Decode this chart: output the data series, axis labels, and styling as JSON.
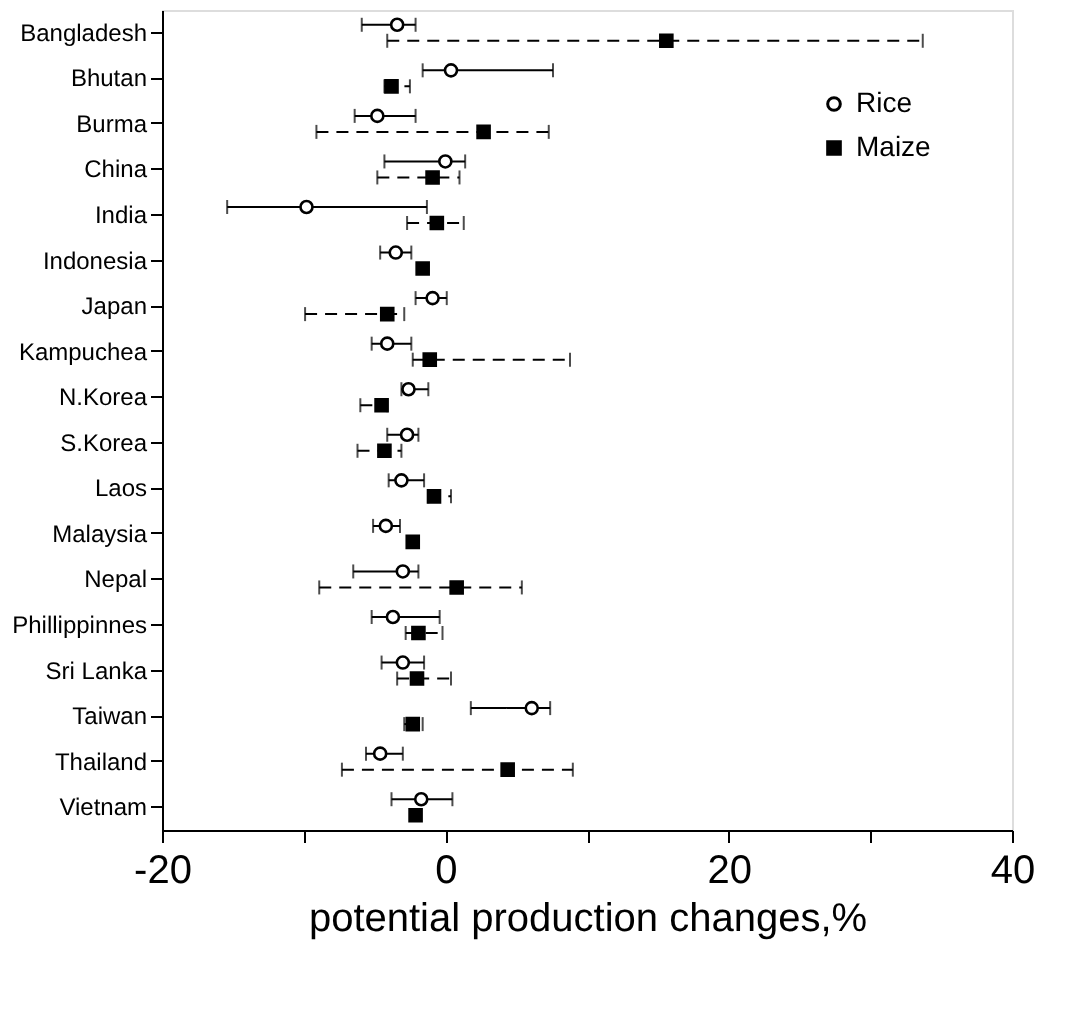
{
  "chart_data": {
    "type": "scatter",
    "orientation": "horizontal",
    "categories": [
      "Bangladesh",
      "Bhutan",
      "Burma",
      "China",
      "India",
      "Indonesia",
      "Japan",
      "Kampuchea",
      "N.Korea",
      "S.Korea",
      "Laos",
      "Malaysia",
      "Nepal",
      "Phillippinnes",
      "Sri Lanka",
      "Taiwan",
      "Thailand",
      "Vietnam"
    ],
    "series": [
      {
        "name": "Rice",
        "color": "#000000",
        "marker": "circle",
        "line_style": "solid",
        "values": [
          -3.4,
          0.4,
          -4.8,
          0.0,
          -9.8,
          -3.5,
          -0.9,
          -4.1,
          -2.6,
          -2.7,
          -3.1,
          -4.2,
          -3.0,
          -3.7,
          -3.0,
          6.1,
          -4.6,
          -1.7
        ],
        "errors": [
          [
            -5.9,
            -2.1
          ],
          [
            -1.6,
            7.6
          ],
          [
            -6.4,
            -2.1
          ],
          [
            -4.3,
            1.4
          ],
          [
            -15.4,
            -1.3
          ],
          [
            -4.6,
            -2.4
          ],
          [
            -2.1,
            0.1
          ],
          [
            -5.2,
            -2.4
          ],
          [
            -3.1,
            -1.2
          ],
          [
            -4.1,
            -1.9
          ],
          [
            -4.0,
            -1.5
          ],
          [
            -5.1,
            -3.2
          ],
          [
            -6.5,
            -1.9
          ],
          [
            -5.2,
            -0.4
          ],
          [
            -4.5,
            -1.5
          ],
          [
            1.8,
            7.4
          ],
          [
            -5.6,
            -3.0
          ],
          [
            -3.8,
            0.5
          ]
        ]
      },
      {
        "name": "Maize",
        "color": "#000000",
        "marker": "square",
        "line_style": "dashed",
        "values": [
          15.6,
          -3.8,
          2.7,
          -0.9,
          -0.6,
          -1.6,
          -4.1,
          -1.1,
          -4.5,
          -4.3,
          -0.8,
          -2.3,
          0.8,
          -1.9,
          -2.0,
          -2.3,
          4.4,
          -2.1
        ],
        "errors": [
          [
            -4.1,
            33.7
          ],
          [
            -4.3,
            -2.5
          ],
          [
            -9.1,
            7.3
          ],
          [
            -4.8,
            1.0
          ],
          [
            -2.7,
            1.3
          ],
          null,
          [
            -9.9,
            -2.9
          ],
          [
            -2.3,
            8.8
          ],
          [
            -6.0,
            -4.1
          ],
          [
            -6.2,
            -3.1
          ],
          [
            -1.2,
            0.4
          ],
          null,
          [
            -8.9,
            5.4
          ],
          [
            -2.8,
            -0.2
          ],
          [
            -3.4,
            0.4
          ],
          [
            -2.9,
            -1.6
          ],
          [
            -7.3,
            9.0
          ],
          null
        ]
      }
    ],
    "xlabel": "potential production changes,%",
    "xlim": [
      -20,
      40
    ],
    "xticks": [
      -20,
      {
        "value": -10,
        "label": null
      },
      0,
      {
        "value": 10,
        "label": null
      },
      20,
      {
        "value": 30,
        "label": null
      },
      40
    ],
    "grid": false,
    "legend": "top right"
  }
}
